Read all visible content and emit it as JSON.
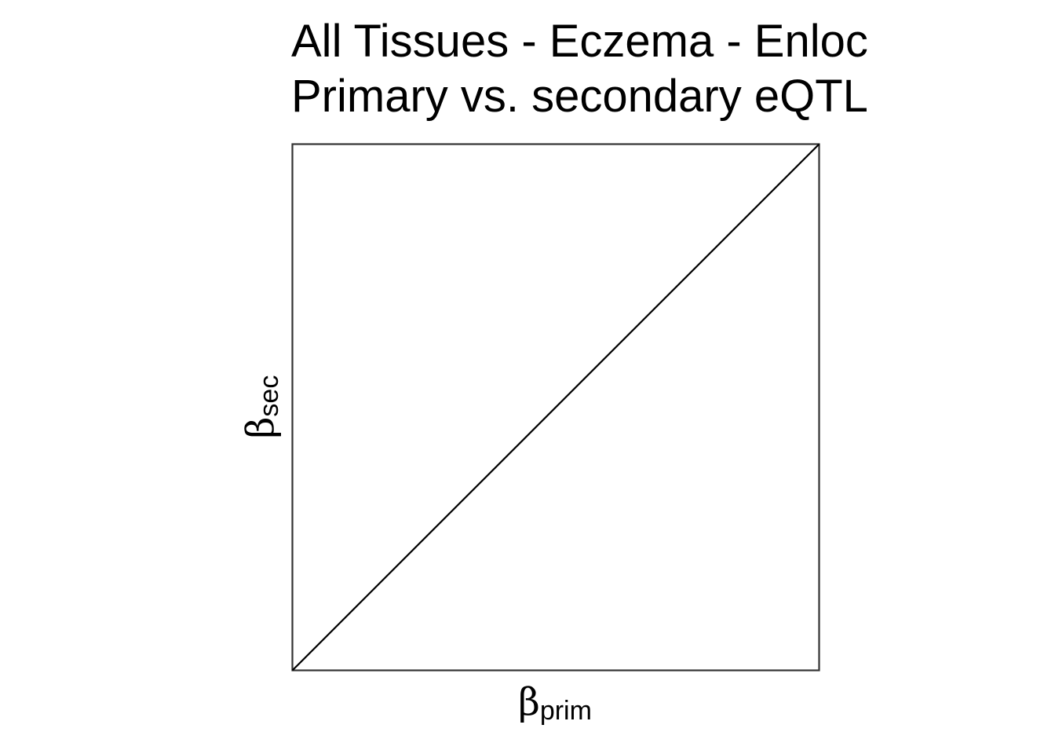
{
  "chart_data": {
    "type": "line",
    "title": [
      "All Tissues - Eczema - Enloc",
      "Primary vs. secondary eQTL"
    ],
    "xlabel": {
      "symbol": "β",
      "subscript": "prim"
    },
    "ylabel": {
      "symbol": "β",
      "subscript": "sec"
    },
    "xlim": [
      0,
      1
    ],
    "ylim": [
      0,
      1
    ],
    "grid": false,
    "series": [
      {
        "x": [
          0,
          1
        ],
        "y": [
          0,
          1
        ]
      }
    ],
    "colors": {
      "line": "#000000",
      "frame": "#333333"
    }
  }
}
